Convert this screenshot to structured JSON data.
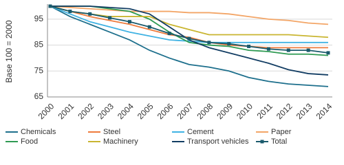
{
  "chart_data": {
    "type": "line",
    "y_label": "Base 100 = 2000",
    "categories": [
      "2000",
      "2001",
      "2002",
      "2003",
      "2004",
      "2005",
      "2006",
      "2007",
      "2008",
      "2009",
      "2010",
      "2011",
      "2012",
      "2013",
      "2014"
    ],
    "ylim": [
      65,
      100
    ],
    "yticks": [
      65,
      75,
      85,
      95
    ],
    "grid": true,
    "series": [
      {
        "name": "Chemicals",
        "color": "#1d6f8c",
        "values": [
          100,
          96,
          93,
          90,
          87,
          83,
          80,
          77.5,
          76.5,
          75,
          72.5,
          71,
          70,
          69.5,
          69
        ]
      },
      {
        "name": "Steel",
        "color": "#ee7b3c",
        "values": [
          100,
          98,
          96,
          94.5,
          93,
          91,
          89,
          88,
          86,
          85,
          84.5,
          84,
          84,
          84,
          84
        ]
      },
      {
        "name": "Cement",
        "color": "#3fb2e3",
        "values": [
          100,
          97,
          94,
          92,
          90,
          88.5,
          87,
          86.5,
          86,
          86,
          86,
          86,
          86,
          86,
          86
        ]
      },
      {
        "name": "Paper",
        "color": "#f3a566",
        "values": [
          100,
          99.5,
          99,
          98.5,
          98,
          98,
          98,
          97.5,
          97.5,
          97,
          96,
          95,
          94.5,
          93.5,
          93
        ]
      },
      {
        "name": "Food",
        "color": "#2e9a52",
        "values": [
          100,
          100,
          100,
          99,
          98,
          95,
          90,
          86,
          85,
          84.5,
          83,
          82.5,
          81.5,
          81.5,
          81
        ]
      },
      {
        "name": "Machinery",
        "color": "#c9b530",
        "values": [
          100,
          98,
          97,
          96,
          96,
          96,
          93,
          91,
          89,
          89,
          89,
          89,
          89,
          88.5,
          88
        ]
      },
      {
        "name": "Transport vehicles",
        "color": "#123d63",
        "values": [
          100,
          100,
          100,
          99.5,
          99,
          97,
          92,
          87,
          84,
          82,
          80,
          78,
          75.5,
          74,
          73.5
        ]
      },
      {
        "name": "Total",
        "color": "#1a5a6c",
        "markers": true,
        "values": [
          100,
          98,
          97,
          95.5,
          94,
          92,
          89.5,
          87.5,
          86,
          85.5,
          84.5,
          83.5,
          83,
          83,
          82
        ]
      }
    ]
  }
}
